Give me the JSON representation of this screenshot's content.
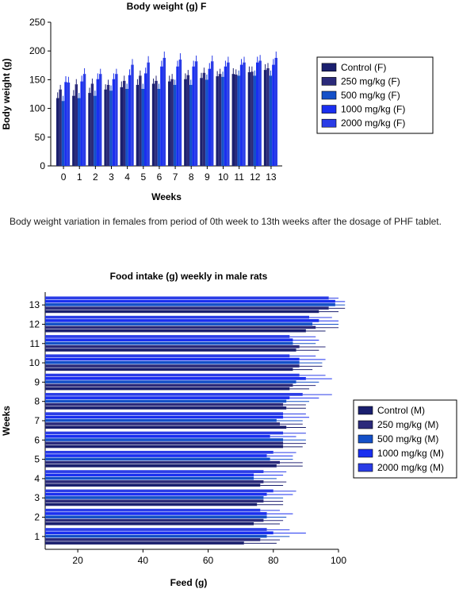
{
  "caption": "Body weight variation in females from period of 0th week to 13th weeks after the dosage of PHF tablet.",
  "colors": [
    "#1a1f6e",
    "#2b2a7a",
    "#1450c8",
    "#1a2ff0",
    "#2a3ce6"
  ],
  "chart_data": [
    {
      "type": "bar",
      "title": "Body weight (g) F",
      "xlabel": "Weeks",
      "ylabel": "Body weight (g)",
      "ylim": [
        0,
        250
      ],
      "yticks": [
        0,
        50,
        100,
        150,
        200,
        250
      ],
      "categories": [
        "0",
        "1",
        "2",
        "3",
        "4",
        "5",
        "6",
        "7",
        "8",
        "9",
        "10",
        "11",
        "12",
        "13"
      ],
      "legend_position": "right",
      "series": [
        {
          "name": "Control (F)",
          "values": [
            118,
            122,
            127,
            133,
            137,
            141,
            143,
            147,
            151,
            153,
            156,
            160,
            163,
            167
          ],
          "error": [
            10,
            10,
            9,
            9,
            10,
            10,
            9,
            10,
            10,
            9,
            9,
            10,
            10,
            10
          ]
        },
        {
          "name": "250 mg/kg (F)",
          "values": [
            133,
            142,
            143,
            141,
            148,
            157,
            148,
            151,
            158,
            162,
            160,
            159,
            164,
            170
          ],
          "error": [
            8,
            9,
            9,
            9,
            9,
            9,
            9,
            9,
            9,
            9,
            9,
            9,
            9,
            9
          ]
        },
        {
          "name": "500 mg/kg (F)",
          "values": [
            113,
            118,
            122,
            131,
            134,
            134,
            134,
            141,
            141,
            150,
            155,
            157,
            157,
            157
          ],
          "error": [
            9,
            9,
            9,
            9,
            9,
            9,
            9,
            9,
            9,
            9,
            9,
            9,
            9,
            9
          ]
        },
        {
          "name": "1000 mg/kg (F)",
          "values": [
            146,
            147,
            151,
            151,
            158,
            161,
            173,
            173,
            173,
            169,
            173,
            176,
            180,
            176
          ],
          "error": [
            10,
            10,
            10,
            10,
            10,
            10,
            10,
            10,
            10,
            10,
            10,
            10,
            10,
            10
          ]
        },
        {
          "name": "2000 mg/kg (F)",
          "values": [
            145,
            160,
            160,
            160,
            176,
            180,
            188,
            185,
            182,
            182,
            180,
            180,
            183,
            188
          ],
          "error": [
            10,
            10,
            9,
            9,
            10,
            11,
            11,
            11,
            10,
            10,
            10,
            10,
            10,
            11
          ]
        }
      ]
    },
    {
      "type": "bar",
      "orientation": "horizontal",
      "title": "Food intake (g) weekly in male rats",
      "xlabel": "Feed (g)",
      "ylabel": "Weeks",
      "xlim": [
        10,
        100
      ],
      "xticks": [
        20,
        40,
        60,
        80,
        100
      ],
      "categories": [
        "1",
        "2",
        "3",
        "4",
        "5",
        "6",
        "7",
        "8",
        "9",
        "10",
        "11",
        "12",
        "13"
      ],
      "legend_position": "right",
      "series": [
        {
          "name": "Control (M)",
          "values": [
            71,
            74,
            75,
            76,
            81,
            83,
            84,
            84,
            85,
            86,
            87,
            90,
            94
          ],
          "error": [
            10,
            8,
            8,
            7,
            8,
            6,
            6,
            6,
            6,
            6,
            7,
            6,
            6
          ]
        },
        {
          "name": "250 mg/kg (M)",
          "values": [
            76,
            77,
            77,
            77,
            82,
            83,
            82,
            83,
            86,
            88,
            88,
            93,
            97
          ],
          "error": [
            6,
            6,
            6,
            7,
            7,
            7,
            7,
            7,
            7,
            7,
            8,
            7,
            5
          ]
        },
        {
          "name": "500 mg/kg (M)",
          "values": [
            78,
            78,
            77,
            74,
            79,
            83,
            81,
            84,
            87,
            88,
            86,
            92,
            99
          ],
          "error": [
            7,
            6,
            6,
            7,
            7,
            7,
            8,
            7,
            7,
            7,
            7,
            8,
            3
          ]
        },
        {
          "name": "1000 mg/kg (M)",
          "values": [
            80,
            78,
            78,
            74,
            78,
            79,
            83,
            85,
            90,
            88,
            86,
            94,
            99
          ],
          "error": [
            10,
            8,
            8,
            9,
            8,
            8,
            8,
            9,
            8,
            8,
            8,
            6,
            3
          ]
        },
        {
          "name": "2000 mg/kg (M)",
          "values": [
            78,
            76,
            80,
            77,
            80,
            83,
            83,
            89,
            88,
            85,
            85,
            91,
            97
          ],
          "error": [
            7,
            6,
            7,
            7,
            7,
            7,
            7,
            9,
            8,
            8,
            8,
            7,
            3
          ]
        }
      ]
    }
  ]
}
